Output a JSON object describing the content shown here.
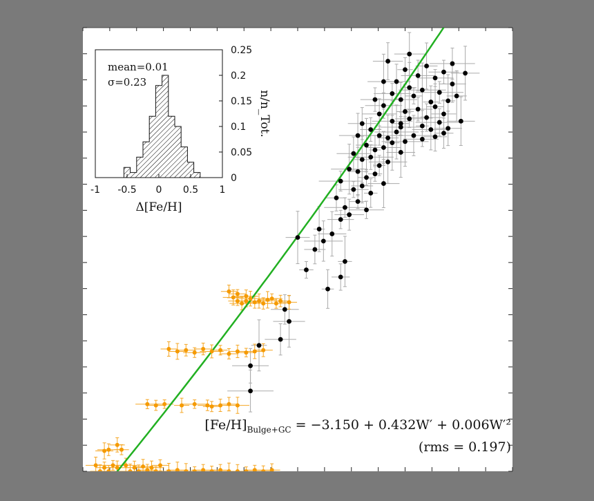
{
  "colors": {
    "page_background": "#7a7a7a",
    "plot_background": "#ffffff",
    "fit_line": "#22b022",
    "bulge_points": "#000000",
    "gc_points": "#f59a00",
    "errorbar_bulge": "#aaaaaa",
    "errorbar_gc": "#f5a623",
    "hatch": "#000000"
  },
  "equation": {
    "lhs": "[Fe/H]",
    "lhs_subscript": "Bulge+GC",
    "rhs": " = −3.150 + 0.432W′ + 0.006W′²",
    "rms": "(rms = 0.197)"
  },
  "chart_data": [
    {
      "type": "scatter",
      "title": "",
      "xlabel": "",
      "ylabel": "",
      "xlim": [
        0,
        10
      ],
      "ylim": [
        -2.8,
        0.9
      ],
      "x_tick_labels_shown": false,
      "y_tick_labels_shown": false,
      "fit_line": {
        "intercept": -3.15,
        "linear": 0.432,
        "quadratic": 0.006,
        "rms": 0.197
      },
      "series": [
        {
          "name": "",
          "color": "#000000",
          "points": [
            [
              7.1,
              0.62
            ],
            [
              7.5,
              0.55
            ],
            [
              7.3,
              0.45
            ],
            [
              7.6,
              0.4
            ],
            [
              7.8,
              0.5
            ],
            [
              8.0,
              0.58
            ],
            [
              8.2,
              0.48
            ],
            [
              8.4,
              0.53
            ],
            [
              7.2,
              0.35
            ],
            [
              7.4,
              0.3
            ],
            [
              7.7,
              0.33
            ],
            [
              7.9,
              0.38
            ],
            [
              8.1,
              0.28
            ],
            [
              8.3,
              0.36
            ],
            [
              8.6,
              0.43
            ],
            [
              7.0,
              0.25
            ],
            [
              7.5,
              0.2
            ],
            [
              7.8,
              0.22
            ],
            [
              8.0,
              0.15
            ],
            [
              8.2,
              0.24
            ],
            [
              8.4,
              0.18
            ],
            [
              8.5,
              0.29
            ],
            [
              8.7,
              0.33
            ],
            [
              6.8,
              0.3
            ],
            [
              6.9,
              0.18
            ],
            [
              7.2,
              0.12
            ],
            [
              7.4,
              0.1
            ],
            [
              7.6,
              0.14
            ],
            [
              7.9,
              0.08
            ],
            [
              8.1,
              0.05
            ],
            [
              8.3,
              0.11
            ],
            [
              8.5,
              0.06
            ],
            [
              8.8,
              0.12
            ],
            [
              6.5,
              0.1
            ],
            [
              6.7,
              0.05
            ],
            [
              6.9,
              0.0
            ],
            [
              7.1,
              -0.02
            ],
            [
              7.3,
              0.03
            ],
            [
              7.5,
              -0.05
            ],
            [
              7.7,
              0.0
            ],
            [
              7.9,
              -0.03
            ],
            [
              8.2,
              -0.01
            ],
            [
              8.4,
              0.02
            ],
            [
              6.4,
              0.0
            ],
            [
              6.6,
              -0.08
            ],
            [
              6.8,
              -0.12
            ],
            [
              7.0,
              -0.1
            ],
            [
              7.2,
              -0.06
            ],
            [
              7.4,
              -0.14
            ],
            [
              6.3,
              -0.15
            ],
            [
              6.5,
              -0.2
            ],
            [
              6.7,
              -0.18
            ],
            [
              6.9,
              -0.25
            ],
            [
              7.1,
              -0.22
            ],
            [
              6.2,
              -0.28
            ],
            [
              6.4,
              -0.3
            ],
            [
              6.6,
              -0.35
            ],
            [
              6.8,
              -0.32
            ],
            [
              7.0,
              -0.4
            ],
            [
              6.0,
              -0.38
            ],
            [
              6.3,
              -0.45
            ],
            [
              6.5,
              -0.42
            ],
            [
              6.7,
              -0.48
            ],
            [
              5.9,
              -0.52
            ],
            [
              6.1,
              -0.6
            ],
            [
              6.4,
              -0.55
            ],
            [
              6.6,
              -0.62
            ],
            [
              6.0,
              -0.7
            ],
            [
              6.2,
              -0.66
            ],
            [
              5.5,
              -0.78
            ],
            [
              5.8,
              -0.82
            ],
            [
              5.0,
              -0.85
            ],
            [
              5.6,
              -0.88
            ],
            [
              5.4,
              -0.95
            ],
            [
              6.1,
              -1.05
            ],
            [
              5.2,
              -1.12
            ],
            [
              6.0,
              -1.18
            ],
            [
              5.7,
              -1.28
            ],
            [
              4.7,
              -1.45
            ],
            [
              4.8,
              -1.55
            ],
            [
              4.6,
              -1.7
            ],
            [
              4.1,
              -1.75
            ],
            [
              3.9,
              -1.92
            ],
            [
              3.9,
              -2.13
            ],
            [
              8.9,
              0.52
            ],
            [
              8.6,
              0.6
            ],
            [
              7.6,
              0.68
            ],
            [
              7.4,
              0.07
            ],
            [
              7.0,
              0.45
            ]
          ]
        },
        {
          "name": "",
          "color": "#f59a00",
          "points": [
            [
              3.5,
              -1.35
            ],
            [
              3.6,
              -1.38
            ],
            [
              3.7,
              -1.4
            ],
            [
              3.8,
              -1.38
            ],
            [
              3.9,
              -1.36
            ],
            [
              4.0,
              -1.39
            ],
            [
              4.1,
              -1.38
            ],
            [
              4.2,
              -1.4
            ],
            [
              4.3,
              -1.37
            ],
            [
              4.4,
              -1.36
            ],
            [
              4.5,
              -1.4
            ],
            [
              3.4,
              -1.3
            ],
            [
              3.6,
              -1.32
            ],
            [
              3.8,
              -1.34
            ],
            [
              4.6,
              -1.38
            ],
            [
              4.8,
              -1.39
            ],
            [
              2.0,
              -1.78
            ],
            [
              2.2,
              -1.8
            ],
            [
              2.4,
              -1.79
            ],
            [
              2.6,
              -1.81
            ],
            [
              2.8,
              -1.78
            ],
            [
              3.0,
              -1.8
            ],
            [
              3.2,
              -1.79
            ],
            [
              3.4,
              -1.82
            ],
            [
              3.6,
              -1.8
            ],
            [
              3.8,
              -1.81
            ],
            [
              4.0,
              -1.8
            ],
            [
              4.2,
              -1.79
            ],
            [
              1.5,
              -2.24
            ],
            [
              1.7,
              -2.25
            ],
            [
              1.9,
              -2.24
            ],
            [
              2.3,
              -2.25
            ],
            [
              2.6,
              -2.24
            ],
            [
              2.9,
              -2.25
            ],
            [
              3.0,
              -2.26
            ],
            [
              3.2,
              -2.25
            ],
            [
              3.4,
              -2.24
            ],
            [
              3.6,
              -2.25
            ],
            [
              0.5,
              -2.63
            ],
            [
              0.6,
              -2.62
            ],
            [
              0.9,
              -2.62
            ],
            [
              0.8,
              -2.58
            ],
            [
              0.3,
              -2.75
            ],
            [
              0.5,
              -2.77
            ],
            [
              0.7,
              -2.75
            ],
            [
              0.8,
              -2.77
            ],
            [
              1.0,
              -2.75
            ],
            [
              1.2,
              -2.77
            ],
            [
              1.4,
              -2.76
            ],
            [
              1.6,
              -2.77
            ],
            [
              1.8,
              -2.75
            ],
            [
              0.4,
              -2.8
            ],
            [
              0.6,
              -2.8
            ],
            [
              1.1,
              -2.8
            ],
            [
              1.3,
              -2.8
            ],
            [
              1.5,
              -2.79
            ],
            [
              1.7,
              -2.8
            ],
            [
              2.0,
              -2.8
            ],
            [
              2.2,
              -2.79
            ],
            [
              2.4,
              -2.8
            ],
            [
              2.6,
              -2.8
            ],
            [
              2.8,
              -2.79
            ],
            [
              3.0,
              -2.8
            ],
            [
              3.2,
              -2.79
            ],
            [
              3.4,
              -2.8
            ],
            [
              3.6,
              -2.8
            ],
            [
              3.8,
              -2.8
            ],
            [
              4.0,
              -2.79
            ],
            [
              4.2,
              -2.8
            ],
            [
              4.4,
              -2.79
            ]
          ]
        }
      ]
    },
    {
      "type": "bar",
      "title": "",
      "xlabel": "Δ[Fe/H]",
      "ylabel": "n/n_Tot.",
      "xlim": [
        -1,
        1
      ],
      "ylim": [
        0,
        0.25
      ],
      "x_ticks": [
        "-1",
        "-0.5",
        "0",
        "0.5",
        "1"
      ],
      "y_ticks": [
        "0",
        "0.05",
        "0.1",
        "0.15",
        "0.2",
        "0.25"
      ],
      "annotations": [
        "mean=0.01",
        "σ=0.23"
      ],
      "bin_edges": [
        -0.55,
        -0.45,
        -0.35,
        -0.25,
        -0.15,
        -0.05,
        0.05,
        0.15,
        0.25,
        0.35,
        0.45,
        0.55,
        0.65
      ],
      "values": [
        0.02,
        0.01,
        0.04,
        0.07,
        0.12,
        0.18,
        0.2,
        0.12,
        0.1,
        0.06,
        0.03,
        0.01
      ]
    }
  ]
}
